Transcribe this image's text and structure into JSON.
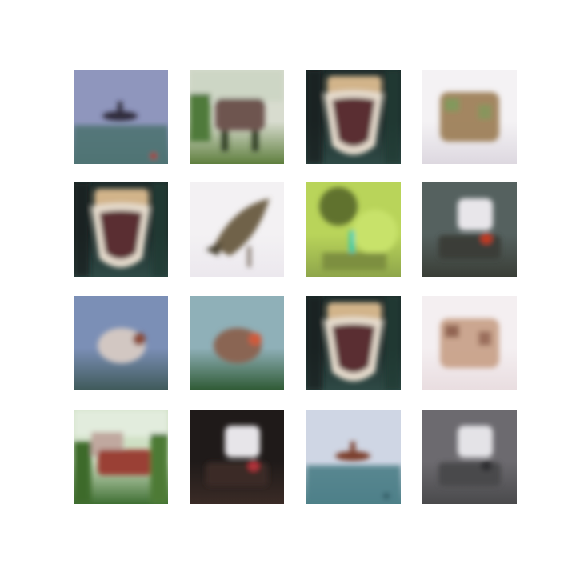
{
  "figure": {
    "rows": 4,
    "cols": 4,
    "background": "#ffffff"
  },
  "tiles": [
    {
      "scene": "airplane-over-water",
      "sky": "#8f96bd",
      "ground": "#4f7374",
      "subject": "#2e2a3a",
      "accent": "#b3312a"
    },
    {
      "scene": "horse-in-field",
      "sky": "#d8dccf",
      "ground": "#5f7f3e",
      "subject": "#6e5450",
      "accent": "#2f3b24"
    },
    {
      "scene": "open-mouth-creature",
      "sky": "#1d2b2a",
      "ground": "#2f4a46",
      "subject": "#d2b48a",
      "accent": "#5a2f33"
    },
    {
      "scene": "bright-blurry-animal",
      "sky": "#f4f2f4",
      "ground": "#ddd8e0",
      "subject": "#9a7a52",
      "accent": "#76a05a"
    },
    {
      "scene": "open-mouth-creature",
      "sky": "#1d2b2a",
      "ground": "#2f4a46",
      "subject": "#d2b48a",
      "accent": "#5a2f33"
    },
    {
      "scene": "bird-on-white",
      "sky": "#f3f1f3",
      "ground": "#ece8ee",
      "subject": "#6f6249",
      "accent": "#4a4233"
    },
    {
      "scene": "green-foliage",
      "sky": "#b9d45a",
      "ground": "#8fa64b",
      "subject": "#61722e",
      "accent": "#2fcfbc"
    },
    {
      "scene": "dark-blurry-objects",
      "sky": "#55615f",
      "ground": "#3a3e37",
      "subject": "#e8e6ea",
      "accent": "#c23b22"
    },
    {
      "scene": "blue-sky-plane",
      "sky": "#7b8fb6",
      "ground": "#3f5a5a",
      "subject": "#d2c7c2",
      "accent": "#8a4b3a"
    },
    {
      "scene": "forest-animal",
      "sky": "#8fb0b8",
      "ground": "#2f5a34",
      "subject": "#8a6552",
      "accent": "#d05a3a"
    },
    {
      "scene": "open-mouth-creature",
      "sky": "#1d2b2a",
      "ground": "#2f4a46",
      "subject": "#d2b48a",
      "accent": "#5a2f33"
    },
    {
      "scene": "pink-building",
      "sky": "#f4eff1",
      "ground": "#e9dde0",
      "subject": "#c79f85",
      "accent": "#7a4a3a"
    },
    {
      "scene": "red-truck-in-trees",
      "sky": "#cfe0c4",
      "ground": "#3f6f33",
      "subject": "#9a3f35",
      "accent": "#5b4a33"
    },
    {
      "scene": "dark-room",
      "sky": "#1f1a19",
      "ground": "#3a2b26",
      "subject": "#e7e5e9",
      "accent": "#b3313a"
    },
    {
      "scene": "ship-on-sea",
      "sky": "#cfd6e4",
      "ground": "#4e8088",
      "subject": "#7a3e2a",
      "accent": "#2f5761"
    },
    {
      "scene": "gray-vehicle",
      "sky": "#6c6a6f",
      "ground": "#4a4a4c",
      "subject": "#e4e3e7",
      "accent": "#2e2d30"
    }
  ]
}
